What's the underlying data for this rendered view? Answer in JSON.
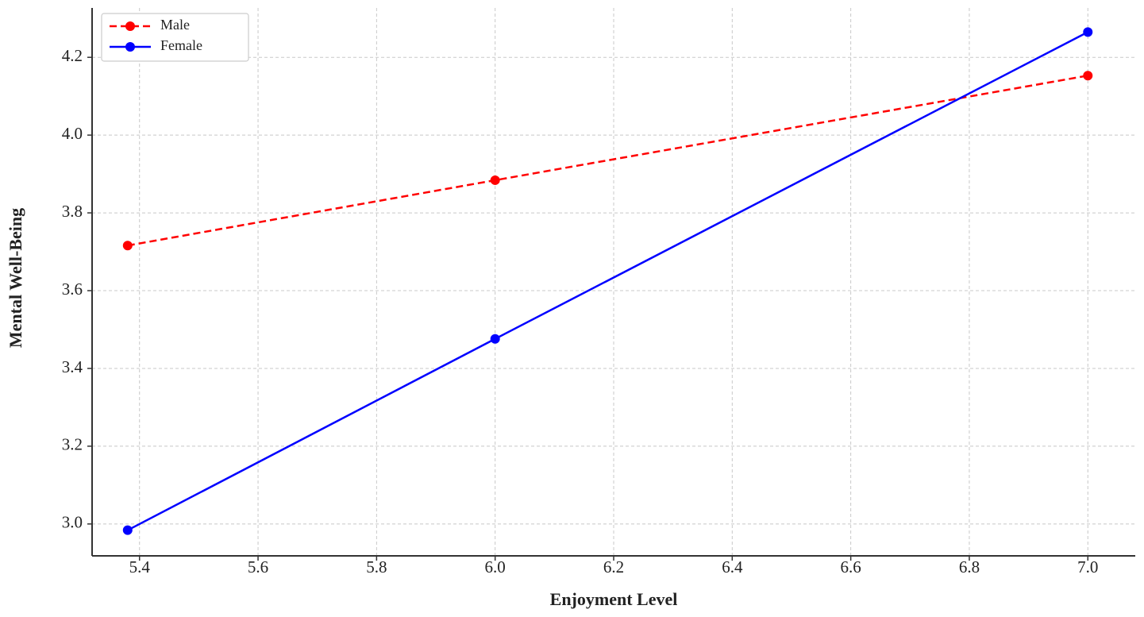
{
  "chart_data": {
    "type": "line",
    "xlabel": "Enjoyment Level",
    "ylabel": "Mental Well-Being",
    "x": [
      5.38,
      6.0,
      7.0
    ],
    "series": [
      {
        "name": "Male",
        "color": "#ff0000",
        "linestyle": "dashed",
        "values": [
          3.716,
          3.884,
          4.153
        ]
      },
      {
        "name": "Female",
        "color": "#0000ff",
        "linestyle": "solid",
        "values": [
          2.984,
          3.476,
          4.265
        ]
      }
    ],
    "xlim": [
      5.32,
      7.08
    ],
    "ylim": [
      2.918,
      4.327
    ],
    "xticks": [
      5.4,
      5.6,
      5.8,
      {
        "value": 6.0,
        "label": "6.0"
      },
      6.2,
      6.4,
      6.6,
      6.8,
      {
        "value": 7.0,
        "label": "7.0"
      }
    ],
    "yticks": [
      {
        "value": 3.0,
        "label": "3.0"
      },
      3.2,
      3.4,
      3.6,
      3.8,
      {
        "value": 4.0,
        "label": "4.0"
      },
      4.2
    ],
    "grid": true,
    "legend": "upper left"
  }
}
